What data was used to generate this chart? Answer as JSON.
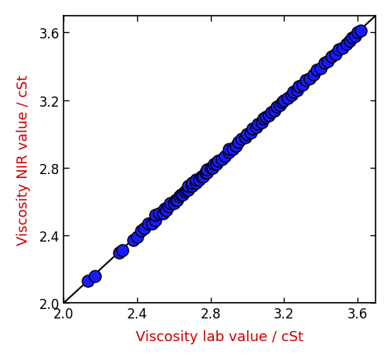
{
  "xlabel": "Viscosity lab value / cSt",
  "ylabel": "Viscosity NIR value / cSt",
  "xlabel_color": "#cc0000",
  "ylabel_color": "#cc0000",
  "axis_label_fontsize": 13,
  "tick_label_color": "black",
  "tick_label_fontsize": 12,
  "xlim": [
    2.0,
    3.7
  ],
  "ylim": [
    2.0,
    3.7
  ],
  "xticks": [
    2.0,
    2.4,
    2.8,
    3.2,
    3.6
  ],
  "yticks": [
    2.0,
    2.4,
    2.8,
    3.2,
    3.6
  ],
  "line_color": "black",
  "line_width": 1.5,
  "scatter_color": "#1a1aff",
  "scatter_edgecolor": "black",
  "scatter_size": 120,
  "scatter_linewidth": 1.0,
  "points": [
    [
      2.13,
      2.13
    ],
    [
      2.17,
      2.16
    ],
    [
      2.3,
      2.3
    ],
    [
      2.32,
      2.31
    ],
    [
      2.38,
      2.37
    ],
    [
      2.4,
      2.39
    ],
    [
      2.42,
      2.43
    ],
    [
      2.44,
      2.44
    ],
    [
      2.46,
      2.47
    ],
    [
      2.48,
      2.47
    ],
    [
      2.5,
      2.49
    ],
    [
      2.5,
      2.52
    ],
    [
      2.52,
      2.53
    ],
    [
      2.54,
      2.53
    ],
    [
      2.55,
      2.56
    ],
    [
      2.56,
      2.55
    ],
    [
      2.57,
      2.57
    ],
    [
      2.58,
      2.59
    ],
    [
      2.6,
      2.59
    ],
    [
      2.61,
      2.61
    ],
    [
      2.62,
      2.61
    ],
    [
      2.63,
      2.63
    ],
    [
      2.64,
      2.64
    ],
    [
      2.65,
      2.64
    ],
    [
      2.66,
      2.66
    ],
    [
      2.67,
      2.67
    ],
    [
      2.68,
      2.67
    ],
    [
      2.68,
      2.69
    ],
    [
      2.7,
      2.69
    ],
    [
      2.7,
      2.71
    ],
    [
      2.72,
      2.71
    ],
    [
      2.72,
      2.73
    ],
    [
      2.74,
      2.73
    ],
    [
      2.75,
      2.75
    ],
    [
      2.76,
      2.75
    ],
    [
      2.77,
      2.77
    ],
    [
      2.78,
      2.77
    ],
    [
      2.78,
      2.79
    ],
    [
      2.8,
      2.8
    ],
    [
      2.81,
      2.8
    ],
    [
      2.82,
      2.82
    ],
    [
      2.83,
      2.82
    ],
    [
      2.84,
      2.84
    ],
    [
      2.86,
      2.85
    ],
    [
      2.88,
      2.87
    ],
    [
      2.9,
      2.89
    ],
    [
      2.9,
      2.91
    ],
    [
      2.92,
      2.91
    ],
    [
      2.94,
      2.93
    ],
    [
      2.95,
      2.95
    ],
    [
      2.97,
      2.97
    ],
    [
      2.99,
      2.98
    ],
    [
      3.0,
      3.0
    ],
    [
      3.02,
      3.01
    ],
    [
      3.03,
      3.03
    ],
    [
      3.05,
      3.04
    ],
    [
      3.06,
      3.06
    ],
    [
      3.08,
      3.07
    ],
    [
      3.09,
      3.09
    ],
    [
      3.1,
      3.1
    ],
    [
      3.12,
      3.11
    ],
    [
      3.13,
      3.13
    ],
    [
      3.15,
      3.14
    ],
    [
      3.16,
      3.16
    ],
    [
      3.18,
      3.17
    ],
    [
      3.19,
      3.19
    ],
    [
      3.2,
      3.2
    ],
    [
      3.22,
      3.21
    ],
    [
      3.24,
      3.23
    ],
    [
      3.25,
      3.25
    ],
    [
      3.27,
      3.26
    ],
    [
      3.28,
      3.28
    ],
    [
      3.3,
      3.29
    ],
    [
      3.32,
      3.32
    ],
    [
      3.34,
      3.33
    ],
    [
      3.36,
      3.35
    ],
    [
      3.38,
      3.38
    ],
    [
      3.4,
      3.39
    ],
    [
      3.42,
      3.42
    ],
    [
      3.44,
      3.43
    ],
    [
      3.46,
      3.46
    ],
    [
      3.48,
      3.47
    ],
    [
      3.5,
      3.5
    ],
    [
      3.52,
      3.51
    ],
    [
      3.54,
      3.53
    ],
    [
      3.56,
      3.55
    ],
    [
      3.57,
      3.57
    ],
    [
      3.59,
      3.58
    ],
    [
      3.6,
      3.6
    ],
    [
      3.62,
      3.61
    ]
  ]
}
